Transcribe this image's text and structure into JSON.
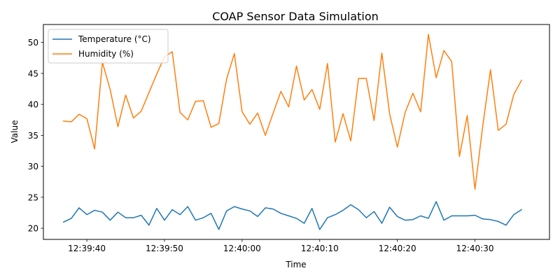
{
  "chart_data": {
    "type": "line",
    "title": "COAP Sensor Data Simulation",
    "xlabel": "Time",
    "ylabel": "Value",
    "legend_position": "top-left",
    "grid": false,
    "x_start": "12:39:37",
    "x_step_seconds": 1,
    "x_tick_labels": [
      "12:39:40",
      "12:39:50",
      "12:40:00",
      "12:40:10",
      "12:40:20",
      "12:40:30"
    ],
    "x_tick_offsets_seconds": [
      3,
      13,
      23,
      33,
      43,
      53
    ],
    "xlim_seconds": [
      -2.6,
      62.6
    ],
    "ylim": [
      18.2,
      52.9
    ],
    "y_ticks": [
      20,
      25,
      30,
      35,
      40,
      45,
      50
    ],
    "series": [
      {
        "name": "Temperature (°C)",
        "color": "#1f77b4",
        "values": [
          21.0,
          21.6,
          23.3,
          22.2,
          22.9,
          22.6,
          21.3,
          22.6,
          21.7,
          21.7,
          22.1,
          20.5,
          23.2,
          21.3,
          23.0,
          22.2,
          23.5,
          21.3,
          21.7,
          22.4,
          19.8,
          22.8,
          23.5,
          23.1,
          22.8,
          21.9,
          23.3,
          23.1,
          22.4,
          22.0,
          21.6,
          20.8,
          23.2,
          19.8,
          21.7,
          22.2,
          22.9,
          23.8,
          23.0,
          21.7,
          22.7,
          20.8,
          23.4,
          21.9,
          21.3,
          21.4,
          22.0,
          21.6,
          24.3,
          21.3,
          22.0,
          22.0,
          22.0,
          22.1,
          21.5,
          21.4,
          21.1,
          20.5,
          22.2,
          23.0
        ]
      },
      {
        "name": "Humidity (%)",
        "color": "#ff7f0e",
        "values": [
          37.3,
          37.2,
          38.4,
          37.7,
          32.8,
          46.8,
          42.4,
          36.4,
          41.5,
          37.8,
          38.9,
          41.9,
          44.9,
          47.7,
          48.5,
          38.7,
          37.5,
          40.5,
          40.6,
          36.3,
          36.9,
          44.1,
          48.2,
          38.8,
          36.8,
          38.6,
          35.0,
          38.6,
          42.1,
          39.6,
          46.2,
          40.7,
          42.4,
          39.2,
          46.6,
          33.9,
          38.5,
          34.1,
          44.2,
          44.2,
          37.4,
          48.3,
          38.5,
          33.1,
          38.7,
          41.8,
          38.8,
          51.3,
          44.3,
          48.7,
          46.9,
          31.6,
          38.2,
          26.3,
          36.5,
          45.6,
          35.8,
          36.8,
          41.6,
          43.9
        ]
      }
    ]
  }
}
